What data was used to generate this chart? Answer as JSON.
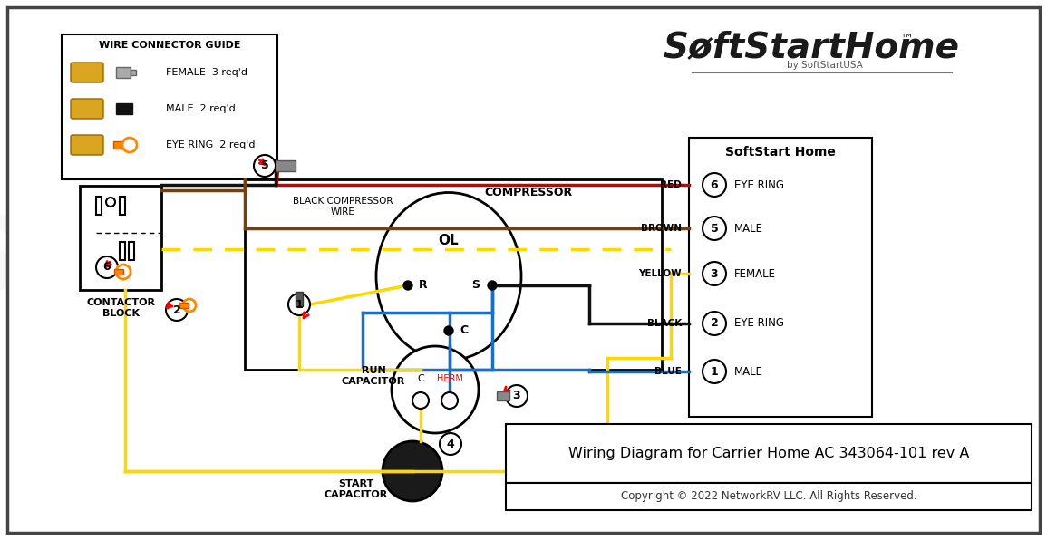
{
  "title": "Wiring Diagram for Carrier Home AC 343064-101 rev A",
  "copyright": "Copyright © 2022 NetworkRV LLC. All Rights Reserved.",
  "bg": "#ffffff",
  "softstart_pins": [
    {
      "num": 6,
      "color_name": "RED",
      "wire_color": "#cc0000",
      "type": "EYE RING"
    },
    {
      "num": 5,
      "color_name": "BROWN",
      "wire_color": "#7B3F00",
      "type": "MALE"
    },
    {
      "num": 3,
      "color_name": "YELLOW",
      "wire_color": "#FFD700",
      "type": "FEMALE"
    },
    {
      "num": 2,
      "color_name": "BLACK",
      "wire_color": "#111111",
      "type": "EYE RING"
    },
    {
      "num": 1,
      "color_name": "BLUE",
      "wire_color": "#1a6fc4",
      "type": "MALE"
    }
  ],
  "connector_guide_title": "WIRE CONNECTOR GUIDE",
  "softstart_home_title": "SoftStart Home",
  "compressor_label": "COMPRESSOR",
  "run_cap_label": "RUN\nCAPACITOR",
  "start_cap_label": "START\nCAPACITOR",
  "contactor_label": "CONTACTOR\nBLOCK",
  "black_wire_label": "BLACK COMPRESSOR\nWIRE",
  "female_label": "FEMALE  3 req'd",
  "male_label": "MALE  2 req'd",
  "eyering_label": "EYE RING  2 req'd"
}
